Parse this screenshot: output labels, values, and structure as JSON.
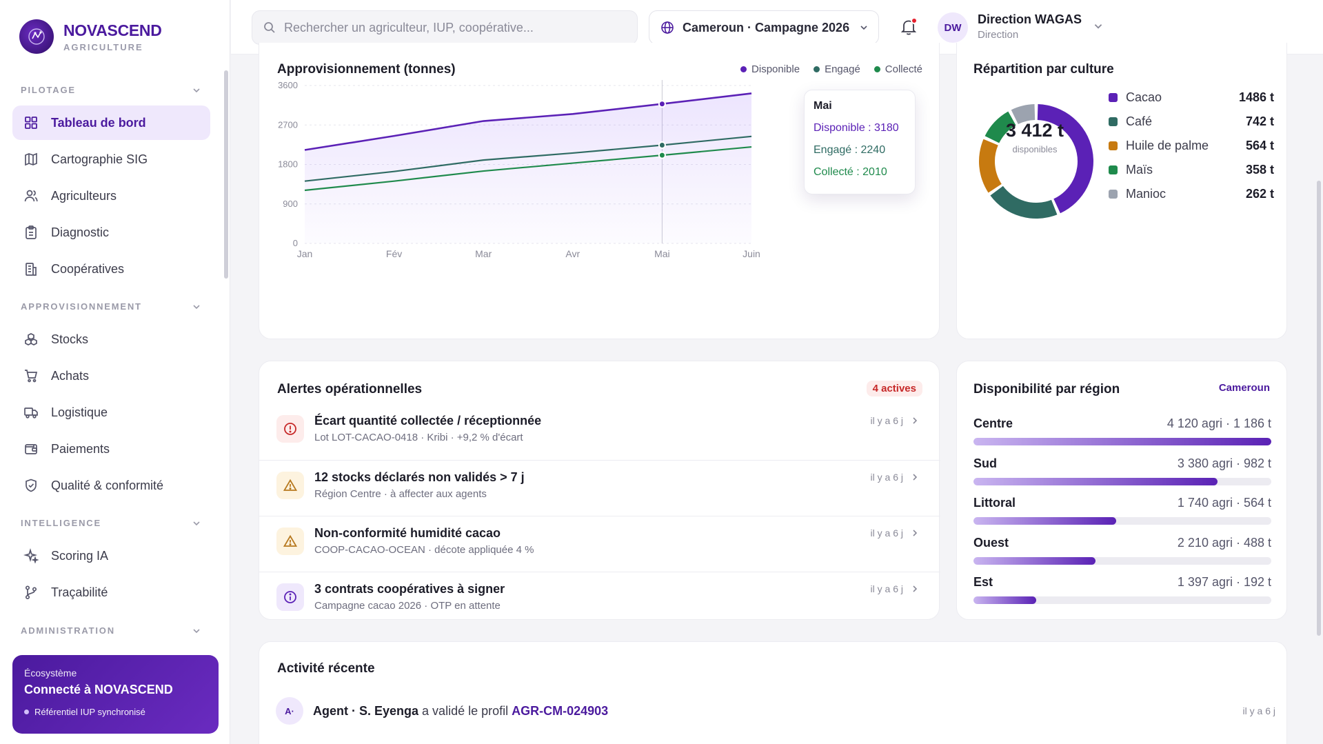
{
  "brand": {
    "name": "NOVASCEND",
    "sub": "AGRICULTURE"
  },
  "sidebar": {
    "sections": [
      {
        "label": "PILOTAGE",
        "items": [
          {
            "label": "Tableau de bord",
            "icon": "grid-icon",
            "active": true
          },
          {
            "label": "Cartographie SIG",
            "icon": "map-icon"
          },
          {
            "label": "Agriculteurs",
            "icon": "users-icon"
          },
          {
            "label": "Diagnostic",
            "icon": "clipboard-icon"
          },
          {
            "label": "Coopératives",
            "icon": "building-icon"
          }
        ]
      },
      {
        "label": "APPROVISIONNEMENT",
        "items": [
          {
            "label": "Stocks",
            "icon": "boxes-icon"
          },
          {
            "label": "Achats",
            "icon": "cart-icon"
          },
          {
            "label": "Logistique",
            "icon": "truck-icon"
          },
          {
            "label": "Paiements",
            "icon": "wallet-icon"
          },
          {
            "label": "Qualité & conformité",
            "icon": "shield-check-icon"
          }
        ]
      },
      {
        "label": "INTELLIGENCE",
        "items": [
          {
            "label": "Scoring IA",
            "icon": "sparkles-icon"
          },
          {
            "label": "Traçabilité",
            "icon": "git-branch-icon"
          }
        ]
      },
      {
        "label": "ADMINISTRATION",
        "items": []
      }
    ],
    "ecosystem": {
      "title": "Écosystème",
      "main": "Connecté à NOVASCEND",
      "status": "Référentiel IUP synchronisé"
    }
  },
  "topbar": {
    "search_placeholder": "Rechercher un agriculteur, IUP, coopérative...",
    "region": "Cameroun · Campagne 2026",
    "avatar": "DW",
    "user_name": "Direction WAGAS",
    "user_role": "Direction"
  },
  "supply": {
    "title": "Approvisionnement (tonnes)",
    "legend": [
      "Disponible",
      "Engagé",
      "Collecté"
    ],
    "tooltip": {
      "title": "Mai",
      "rows": [
        "Disponible : 3180",
        "Engagé : 2240",
        "Collecté : 2010"
      ]
    }
  },
  "chart_data": {
    "type": "line",
    "categories": [
      "Jan",
      "Fév",
      "Mar",
      "Avr",
      "Mai",
      "Juin"
    ],
    "series": [
      {
        "name": "Disponible",
        "values": [
          2130,
          2450,
          2790,
          2950,
          3180,
          3420
        ]
      },
      {
        "name": "Engagé",
        "values": [
          1420,
          1640,
          1900,
          2060,
          2240,
          2440
        ]
      },
      {
        "name": "Collecté",
        "values": [
          1210,
          1420,
          1650,
          1830,
          2010,
          2200
        ]
      }
    ],
    "yticks": [
      "0",
      "900",
      "1800",
      "2700",
      "3600"
    ],
    "ylim": [
      0,
      3600
    ],
    "colors": [
      "#5b21b6",
      "#2f6b63",
      "#1f8a4c"
    ]
  },
  "crops": {
    "title": "Répartition par culture",
    "total": "3 412 t",
    "total_label": "disponibles",
    "items": [
      {
        "name": "Cacao",
        "value": "1486 t",
        "tonnes": 1486,
        "color": "#5b21b6"
      },
      {
        "name": "Café",
        "value": "742 t",
        "tonnes": 742,
        "color": "#2f6b63"
      },
      {
        "name": "Huile de palme",
        "value": "564 t",
        "tonnes": 564,
        "color": "#c77a10"
      },
      {
        "name": "Maïs",
        "value": "358 t",
        "tonnes": 358,
        "color": "#1f8a4c"
      },
      {
        "name": "Manioc",
        "value": "262 t",
        "tonnes": 262,
        "color": "#9ca3af"
      }
    ]
  },
  "alerts": {
    "title": "Alertes opérationnelles",
    "badge": "4 actives",
    "items": [
      {
        "title": "Écart quantité collectée / réceptionnée",
        "sub": "Lot LOT-CACAO-0418 · Kribi · +9,2 % d'écart",
        "time": "il y a 6 j",
        "kind": "error"
      },
      {
        "title": "12 stocks déclarés non validés > 7 j",
        "sub": "Région Centre · à affecter aux agents",
        "time": "il y a 6 j",
        "kind": "warning"
      },
      {
        "title": "Non-conformité humidité cacao",
        "sub": "COOP-CACAO-OCEAN · décote appliquée 4 %",
        "time": "il y a 6 j",
        "kind": "warning"
      },
      {
        "title": "3 contrats coopératives à signer",
        "sub": "Campagne cacao 2026 · OTP en attente",
        "time": "il y a 6 j",
        "kind": "info"
      }
    ]
  },
  "regions": {
    "title": "Disponibilité par région",
    "tag": "Cameroun",
    "items": [
      {
        "name": "Centre",
        "value": "4 120 agri · 1 186 t",
        "share": 1.0
      },
      {
        "name": "Sud",
        "value": "3 380 agri · 982 t",
        "share": 0.82
      },
      {
        "name": "Littoral",
        "value": "1 740 agri · 564 t",
        "share": 0.48
      },
      {
        "name": "Ouest",
        "value": "2 210 agri · 488 t",
        "share": 0.41
      },
      {
        "name": "Est",
        "value": "1 397 agri · 192 t",
        "share": 0.21
      }
    ]
  },
  "activity": {
    "title": "Activité récente",
    "items": [
      {
        "avatar": "A·",
        "actor": "Agent · S. Eyenga",
        "action": "a validé le profil",
        "ref": "AGR-CM-024903",
        "time": "il y a 6 j"
      }
    ]
  }
}
